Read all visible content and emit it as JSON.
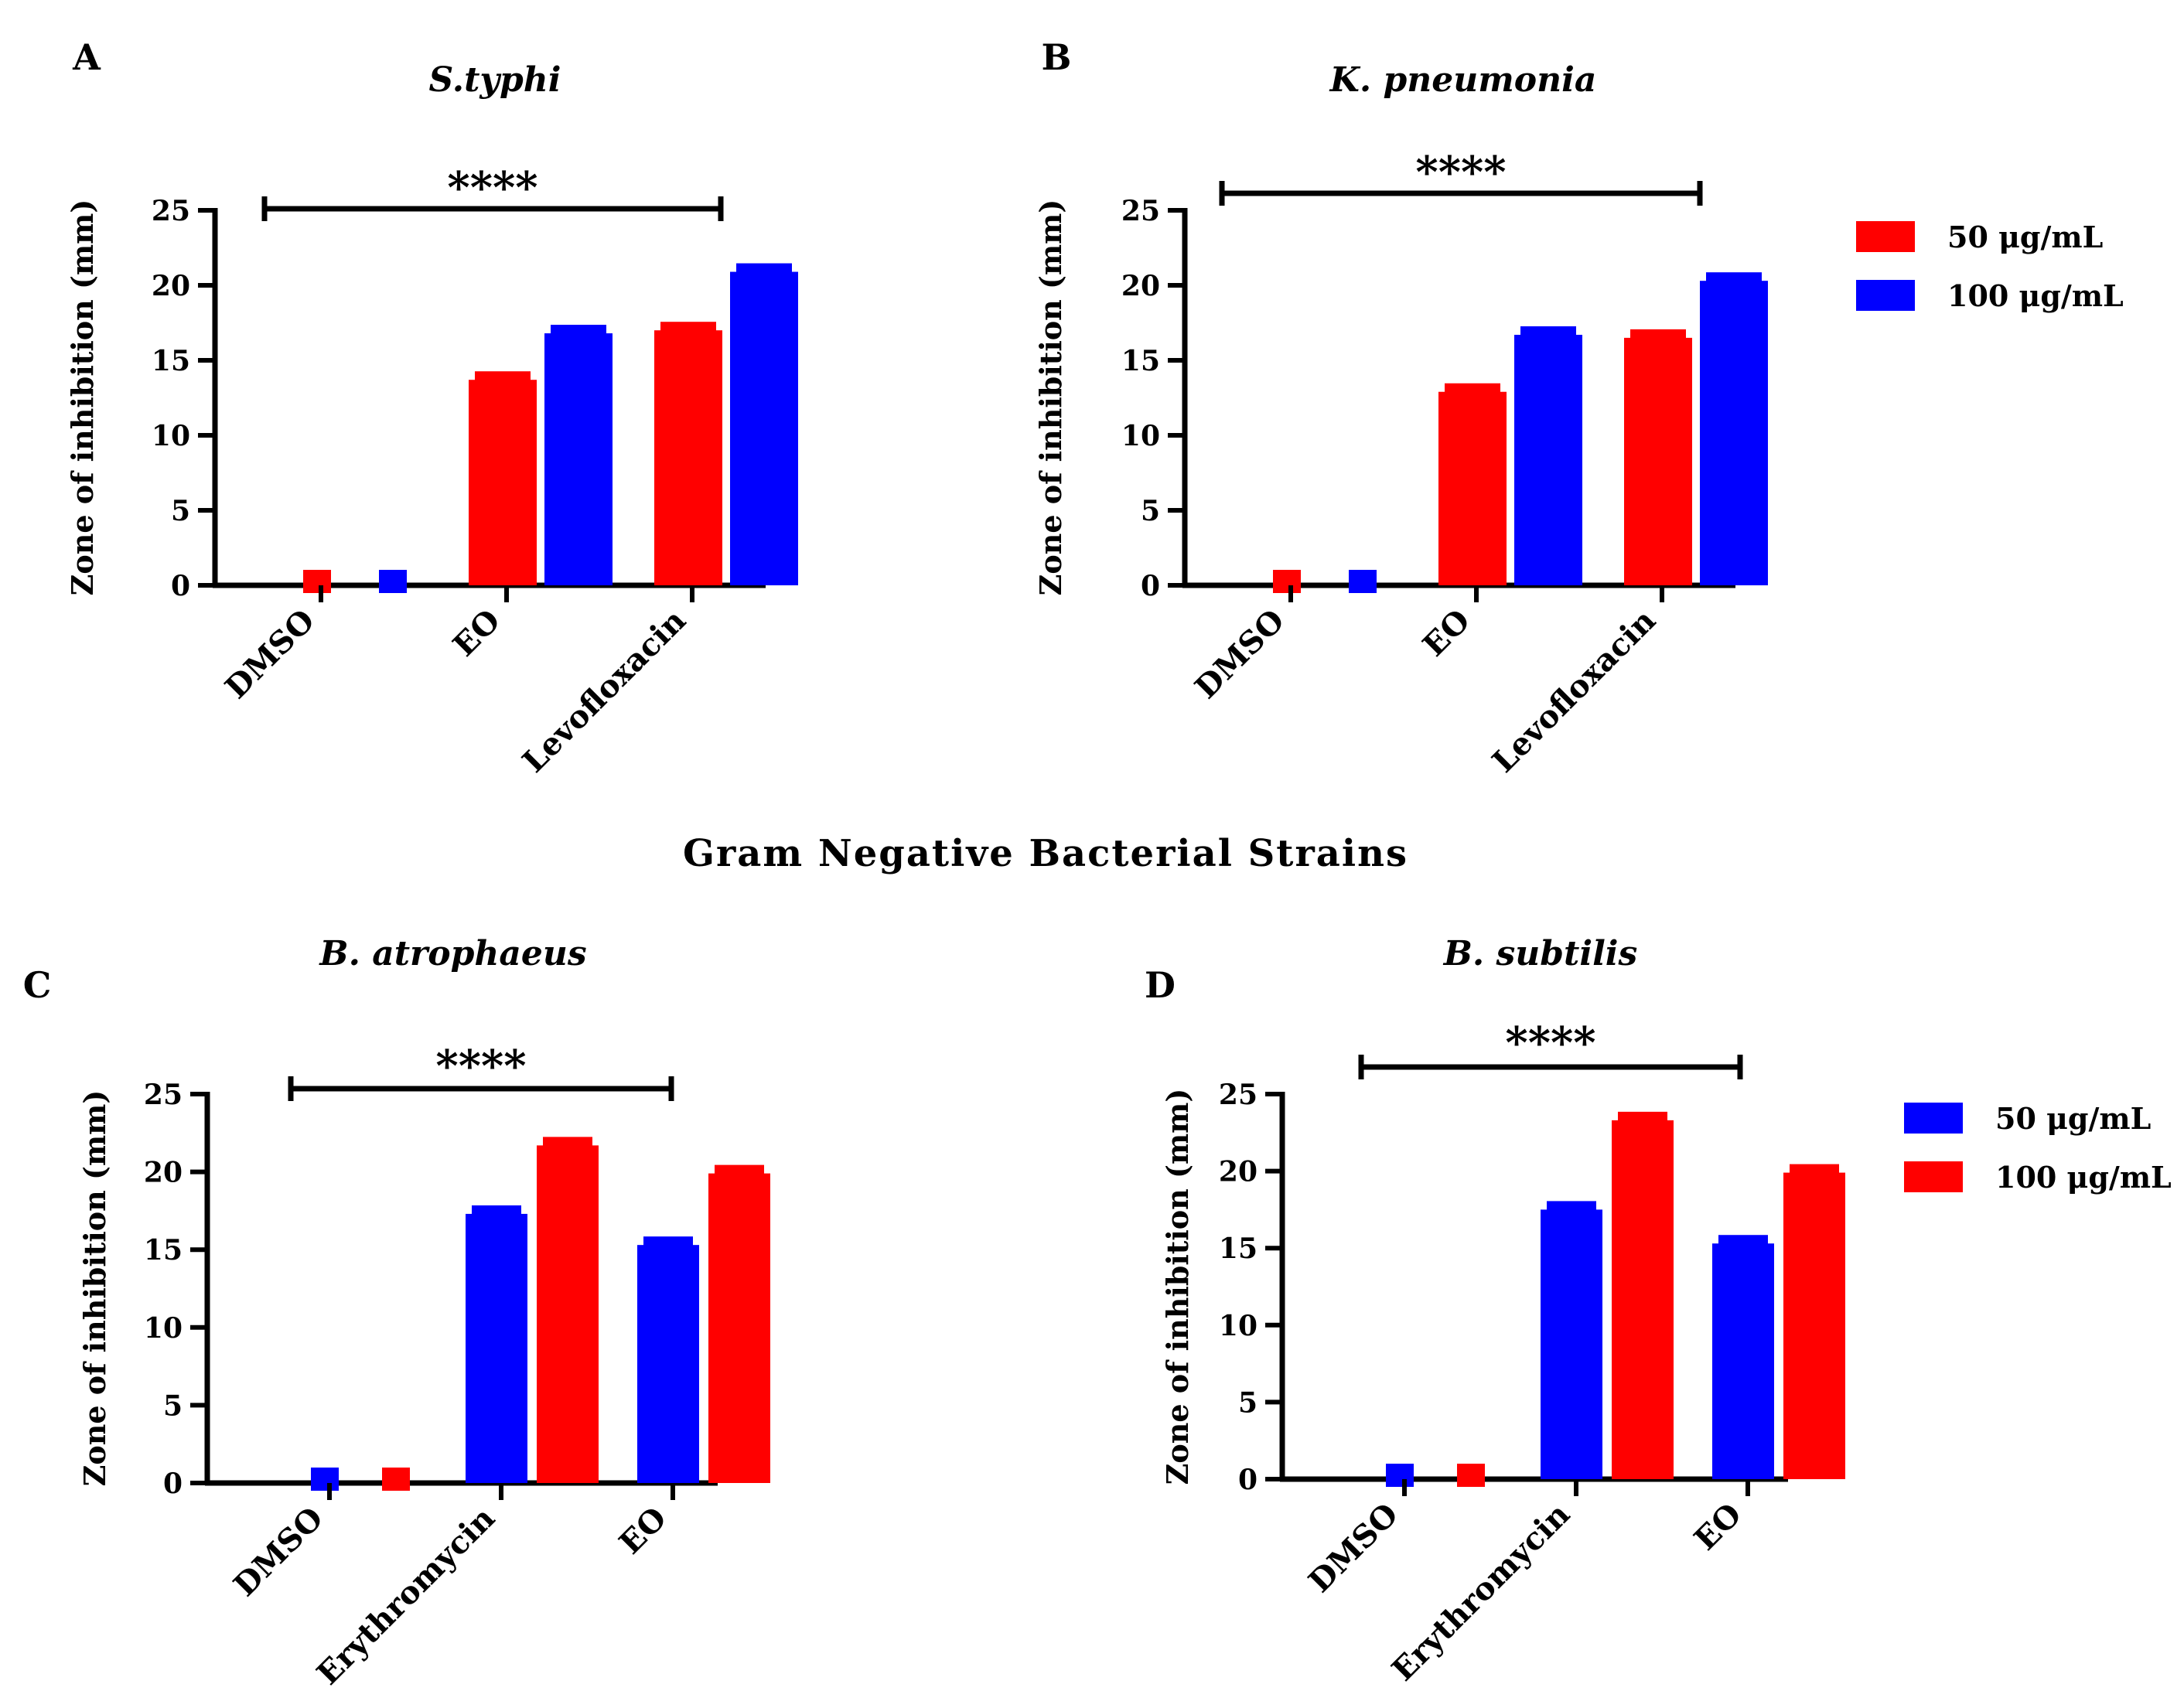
{
  "section_title": "Gram Negative Bacterial Strains",
  "colors": {
    "red": "#ff0000",
    "blue": "#0000ff"
  },
  "legends": [
    {
      "items": [
        {
          "label": "50 μg/mL",
          "color": "#ff0000"
        },
        {
          "label": "100 μg/mL",
          "color": "#0000ff"
        }
      ]
    },
    {
      "items": [
        {
          "label": "50 μg/mL",
          "color": "#0000ff"
        },
        {
          "label": "100 μg/mL",
          "color": "#ff0000"
        }
      ]
    }
  ],
  "chart_data": [
    {
      "type": "bar",
      "panel": "A",
      "title": "S.typhi",
      "ylabel": "Zone of inhibition (mm)",
      "xlabel": "",
      "ylim": [
        0,
        25
      ],
      "yticks": [
        "0",
        "5",
        "10",
        "15",
        "20",
        "25"
      ],
      "categories": [
        "DMSO",
        "EO",
        "Levofloxacin"
      ],
      "series": [
        {
          "name": "50 μg/mL",
          "color": "#ff0000",
          "values": [
            0,
            13.7,
            17.0
          ]
        },
        {
          "name": "100 μg/mL",
          "color": "#0000ff",
          "values": [
            0,
            16.8,
            20.9
          ]
        }
      ],
      "significance": "****"
    },
    {
      "type": "bar",
      "panel": "B",
      "title": "K. pneumonia",
      "ylabel": "Zone of inhibition (mm)",
      "xlabel": "",
      "ylim": [
        0,
        25
      ],
      "yticks": [
        "0",
        "5",
        "10",
        "15",
        "20",
        "25"
      ],
      "categories": [
        "DMSO",
        "EO",
        "Levofloxacin"
      ],
      "series": [
        {
          "name": "50 μg/mL",
          "color": "#ff0000",
          "values": [
            0,
            12.9,
            16.5
          ]
        },
        {
          "name": "100 μg/mL",
          "color": "#0000ff",
          "values": [
            0,
            16.7,
            20.3
          ]
        }
      ],
      "significance": "****"
    },
    {
      "type": "bar",
      "panel": "C",
      "title": "B. atrophaeus",
      "ylabel": "Zone of inhibition (mm)",
      "xlabel": "",
      "ylim": [
        0,
        25
      ],
      "yticks": [
        "0",
        "5",
        "10",
        "15",
        "20",
        "25"
      ],
      "categories": [
        "DMSO",
        "Erythromycin",
        "EO"
      ],
      "series": [
        {
          "name": "50 μg/mL",
          "color": "#0000ff",
          "values": [
            0,
            17.3,
            15.3
          ]
        },
        {
          "name": "100 μg/mL",
          "color": "#ff0000",
          "values": [
            0,
            21.7,
            19.9
          ]
        }
      ],
      "significance": "****"
    },
    {
      "type": "bar",
      "panel": "D",
      "title": "B. subtilis",
      "ylabel": "Zone of inhibition (mm)",
      "xlabel": "",
      "ylim": [
        0,
        25
      ],
      "yticks": [
        "0",
        "5",
        "10",
        "15",
        "20",
        "25"
      ],
      "categories": [
        "DMSO",
        "Erythromycin",
        "EO"
      ],
      "series": [
        {
          "name": "50 μg/mL",
          "color": "#0000ff",
          "values": [
            0,
            17.5,
            15.3
          ]
        },
        {
          "name": "100 μg/mL",
          "color": "#ff0000",
          "values": [
            0,
            23.3,
            19.9
          ]
        }
      ],
      "significance": "****"
    }
  ]
}
